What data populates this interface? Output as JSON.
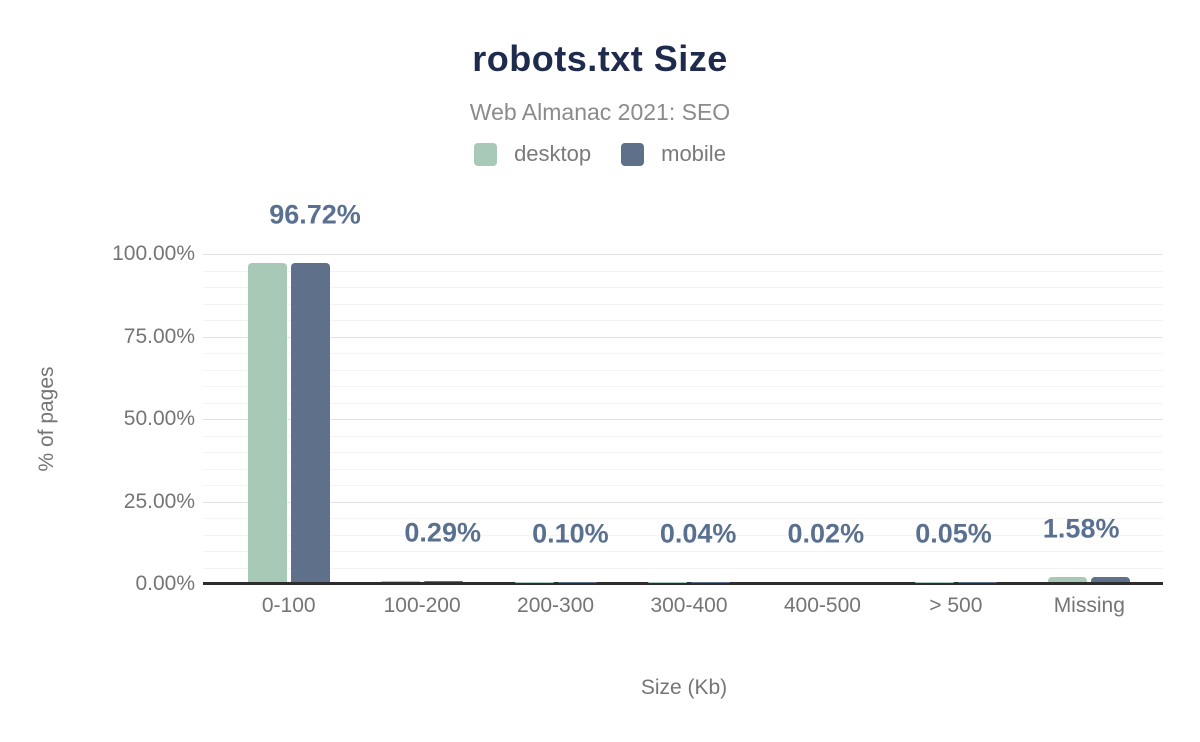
{
  "title": "robots.txt Size",
  "subtitle": "Web Almanac 2021: SEO",
  "legend": {
    "items": [
      {
        "label": "desktop",
        "color": "#a7c9b6"
      },
      {
        "label": "mobile",
        "color": "#5f718a"
      }
    ]
  },
  "chart_data": {
    "type": "bar",
    "title": "robots.txt Size",
    "subtitle": "Web Almanac 2021: SEO",
    "categories": [
      "0-100",
      "100-200",
      "200-300",
      "300-400",
      "400-500",
      "> 500",
      "Missing"
    ],
    "series": [
      {
        "name": "desktop",
        "color": "#a7c9b6",
        "values": [
          96.72,
          0.29,
          0.1,
          0.04,
          0.02,
          0.05,
          1.58
        ]
      },
      {
        "name": "mobile",
        "color": "#5f718a",
        "values": [
          96.72,
          0.29,
          0.1,
          0.04,
          0.02,
          0.05,
          1.58
        ]
      }
    ],
    "data_labels": [
      "96.72%",
      "0.29%",
      "0.10%",
      "0.04%",
      "0.02%",
      "0.05%",
      "1.58%"
    ],
    "xlabel": "Size (Kb)",
    "ylabel": "% of pages",
    "y_ticks": [
      {
        "label": "0.00%",
        "value": 0
      },
      {
        "label": "25.00%",
        "value": 25
      },
      {
        "label": "50.00%",
        "value": 50
      },
      {
        "label": "75.00%",
        "value": 75
      },
      {
        "label": "100.00%",
        "value": 100
      }
    ],
    "ylim": [
      0,
      100
    ],
    "grid": "horizontal minor every 5%, major every 25%, no vertical gridlines",
    "legend_position": "top center"
  },
  "colors": {
    "background": "#ffffff",
    "title_text": "#1e2b4d",
    "subtitle_text": "#8b8b8b",
    "tick_text": "#757575",
    "legend_text": "#7a7a7a",
    "data_label_text": "#5a7090",
    "axis_line": "#2d2d2d",
    "grid_minor": "#f4f4f4",
    "grid_major": "#e3e3e3",
    "desktop_bar": "#a7c9b6",
    "mobile_bar": "#5f718a"
  }
}
